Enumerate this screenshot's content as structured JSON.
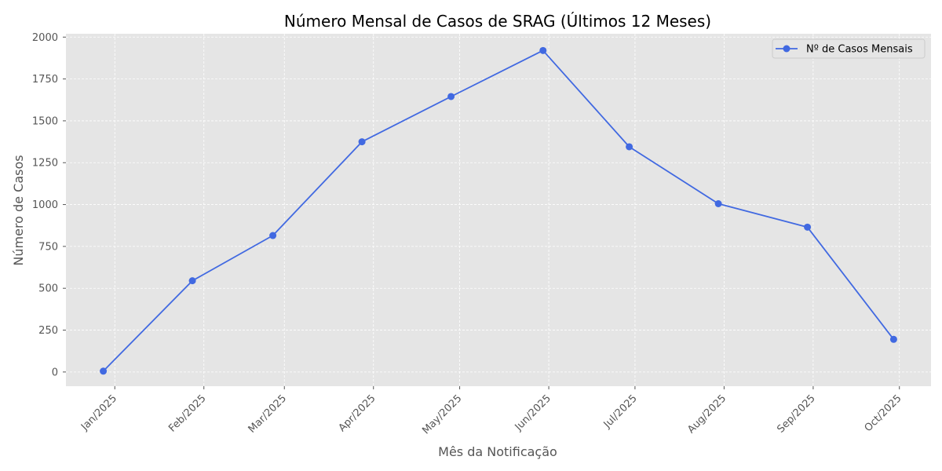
{
  "chart_data": {
    "type": "line",
    "title": "Número Mensal de Casos de SRAG (Últimos 12 Meses)",
    "xlabel": "Mês da Notificação",
    "ylabel": "Número de Casos",
    "categories": [
      "Jan/2025",
      "Feb/2025",
      "Mar/2025",
      "Apr/2025",
      "May/2025",
      "Jun/2025",
      "Jul/2025",
      "Aug/2025",
      "Sep/2025",
      "Oct/2025"
    ],
    "x": [
      "2025-01-01",
      "2025-02-01",
      "2025-03-01",
      "2025-04-01",
      "2025-05-01",
      "2025-06-01",
      "2025-07-01",
      "2025-08-01",
      "2025-09-01",
      "2025-10-01"
    ],
    "series": [
      {
        "name": "Nº de Casos Mensais",
        "color": "#4169E1",
        "marker": "circle",
        "points": [
          {
            "x": "2024-12-28",
            "y": 5
          },
          {
            "x": "2025-01-28",
            "y": 545
          },
          {
            "x": "2025-02-25",
            "y": 815
          },
          {
            "x": "2025-03-28",
            "y": 1375
          },
          {
            "x": "2025-04-28",
            "y": 1645
          },
          {
            "x": "2025-05-30",
            "y": 1920
          },
          {
            "x": "2025-06-29",
            "y": 1345
          },
          {
            "x": "2025-07-30",
            "y": 1005
          },
          {
            "x": "2025-08-30",
            "y": 865
          },
          {
            "x": "2025-09-29",
            "y": 195
          }
        ]
      }
    ],
    "yticks": [
      0,
      250,
      500,
      750,
      1000,
      1250,
      1500,
      1750,
      2000
    ],
    "ylim": [
      -85,
      2020
    ],
    "xlim": [
      "2024-12-15",
      "2025-10-12"
    ],
    "grid": true,
    "legend_position": "top-right",
    "background_color": "#E5E5E5"
  }
}
